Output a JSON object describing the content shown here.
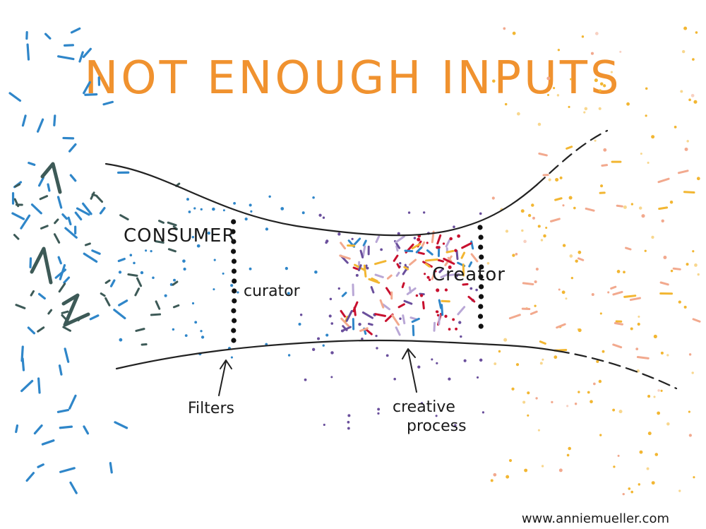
{
  "title": "NOT ENOUGH INPUTS",
  "labels": {
    "consumer": "CONSUMER",
    "curator": "curator",
    "creator": "Creator",
    "filters": "Filters",
    "creative_line1": "creative",
    "creative_line2": "process"
  },
  "watermark": "www.anniemueller.com",
  "colors": {
    "title": "#f0922f",
    "input_blue": "#2f86c9",
    "consumer_gray": "#3d5a57",
    "purple": "#6a4f9c",
    "red": "#c8102e",
    "output_yellow": "#f2b632",
    "output_peach": "#f2a98e"
  }
}
